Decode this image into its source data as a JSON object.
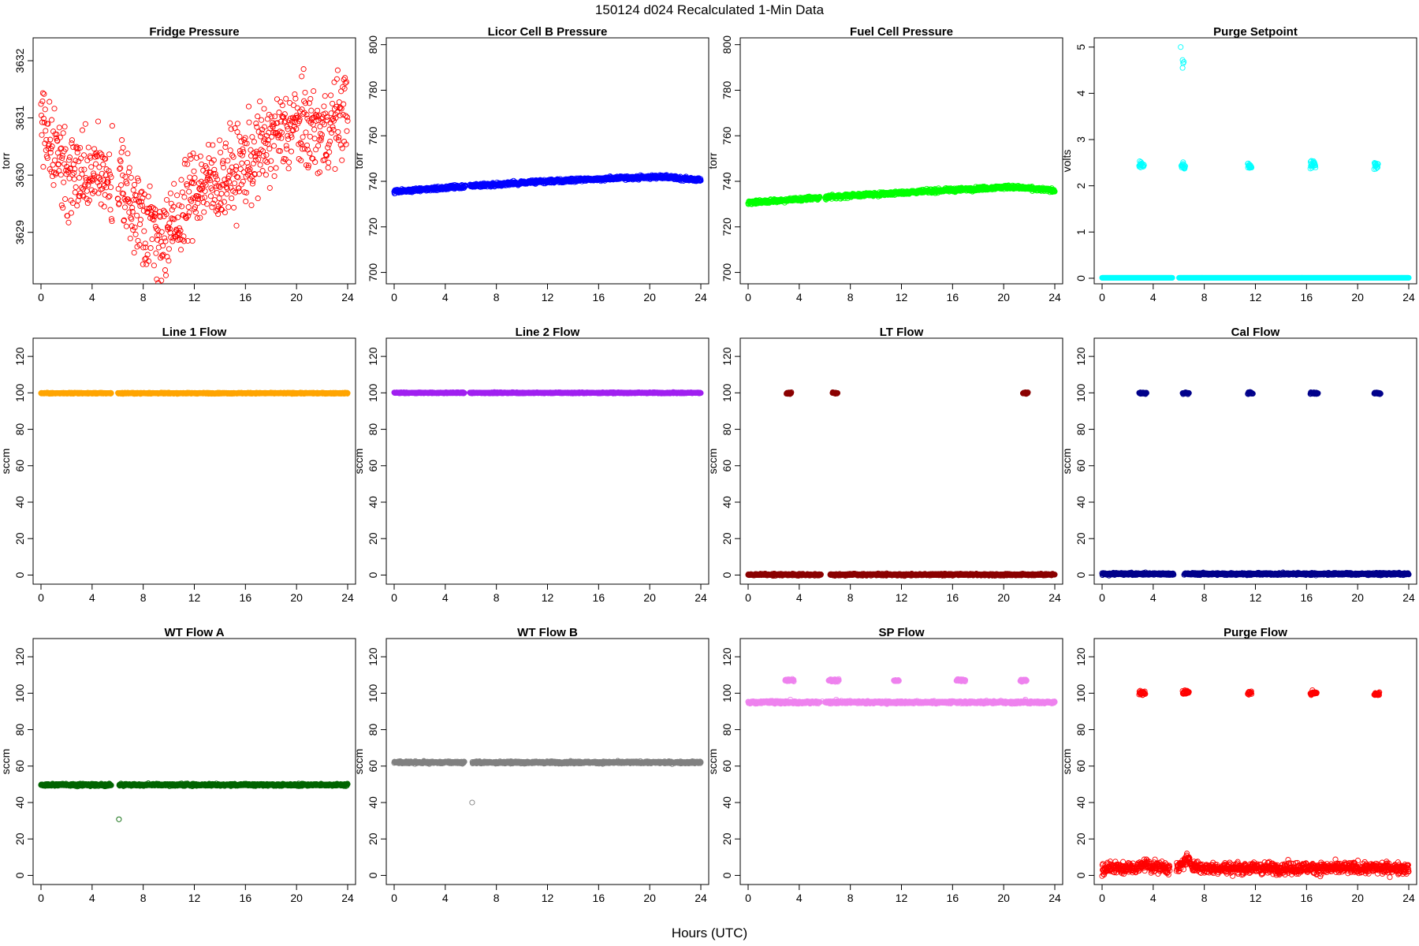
{
  "figure": {
    "title": "150124    d024    Recalculated 1-Min Data",
    "xlabel": "Hours (UTC)"
  },
  "chart_data": [
    {
      "type": "scatter",
      "title": "Fridge Pressure",
      "ylabel": "torr",
      "color": "#ff0000",
      "xlim": [
        0,
        24
      ],
      "ylim": [
        3628.1,
        3632.4
      ],
      "xticks": [
        0,
        4,
        8,
        12,
        16,
        20,
        24
      ],
      "yticks": [
        3629,
        3630,
        3631,
        3632
      ],
      "gap": [
        5.6,
        6.0
      ],
      "series": [
        {
          "kind": "noisy",
          "anchors": [
            [
              0,
              3631.0
            ],
            [
              1,
              3630.5
            ],
            [
              2,
              3630.0
            ],
            [
              4,
              3630.0
            ],
            [
              6,
              3629.9
            ],
            [
              7,
              3629.5
            ],
            [
              8,
              3629.3
            ],
            [
              9,
              3629.0
            ],
            [
              10,
              3628.9
            ],
            [
              11,
              3629.3
            ],
            [
              12,
              3629.8
            ],
            [
              14,
              3629.9
            ],
            [
              16,
              3630.2
            ],
            [
              18,
              3630.6
            ],
            [
              20,
              3630.9
            ],
            [
              22,
              3630.7
            ],
            [
              24,
              3631.2
            ]
          ],
          "noise": 0.38,
          "step": 0.03
        }
      ]
    },
    {
      "type": "scatter",
      "title": "Licor Cell B Pressure",
      "ylabel": "torr",
      "color": "#0000ff",
      "xlim": [
        0,
        24
      ],
      "ylim": [
        695,
        803
      ],
      "xticks": [
        0,
        4,
        8,
        12,
        16,
        20,
        24
      ],
      "yticks": [
        700,
        720,
        740,
        760,
        780,
        800
      ],
      "gap": [
        5.6,
        5.9
      ],
      "series": [
        {
          "kind": "line",
          "anchors": [
            [
              0,
              735.5
            ],
            [
              6,
              738
            ],
            [
              12,
              740
            ],
            [
              18,
              741.5
            ],
            [
              21,
              742
            ],
            [
              24,
              740.5
            ]
          ],
          "noise": 0.4,
          "step": 0.02
        }
      ]
    },
    {
      "type": "scatter",
      "title": "Fuel Cell Pressure",
      "ylabel": "torr",
      "color": "#00ff00",
      "xlim": [
        0,
        24
      ],
      "ylim": [
        695,
        803
      ],
      "xticks": [
        0,
        4,
        8,
        12,
        16,
        20,
        24
      ],
      "yticks": [
        700,
        720,
        740,
        760,
        780,
        800
      ],
      "gap": [
        5.6,
        6.0
      ],
      "series": [
        {
          "kind": "line",
          "anchors": [
            [
              0,
              730.5
            ],
            [
              6,
              733
            ],
            [
              12,
              735
            ],
            [
              18,
              736.8
            ],
            [
              20.5,
              737.5
            ],
            [
              24,
              736
            ]
          ],
          "noise": 0.4,
          "step": 0.02
        }
      ]
    },
    {
      "type": "scatter",
      "title": "Purge Setpoint",
      "ylabel": "volts",
      "color": "#00ffff",
      "xlim": [
        0,
        24
      ],
      "ylim": [
        -0.12,
        5.2
      ],
      "xticks": [
        0,
        4,
        8,
        12,
        16,
        20,
        24
      ],
      "yticks": [
        0,
        1,
        2,
        3,
        4,
        5
      ],
      "gap": [
        5.5,
        6.0
      ],
      "series": [
        {
          "kind": "line",
          "anchors": [
            [
              0,
              0.01
            ],
            [
              24,
              0.01
            ]
          ],
          "noise": 0,
          "step": 0.02
        },
        {
          "kind": "cluster",
          "clusters": [
            [
              2.9,
              3.3,
              2.45
            ],
            [
              6.2,
              6.5,
              2.43
            ],
            [
              11.4,
              11.7,
              2.43
            ],
            [
              16.3,
              16.7,
              2.46
            ],
            [
              21.3,
              21.6,
              2.44
            ]
          ],
          "noise": 0.04,
          "step": 0.02
        },
        {
          "kind": "points",
          "points": [
            [
              6.15,
              5.0
            ],
            [
              6.3,
              4.72
            ],
            [
              6.35,
              4.65
            ],
            [
              6.3,
              4.55
            ],
            [
              6.4,
              4.68
            ]
          ]
        }
      ]
    },
    {
      "type": "scatter",
      "title": "Line 1 Flow",
      "ylabel": "sccm",
      "color": "#ffa500",
      "xlim": [
        0,
        24
      ],
      "ylim": [
        -5,
        130
      ],
      "xticks": [
        0,
        4,
        8,
        12,
        16,
        20,
        24
      ],
      "yticks": [
        0,
        20,
        40,
        60,
        80,
        100,
        120
      ],
      "gap": [
        5.5,
        6.0
      ],
      "series": [
        {
          "kind": "line",
          "anchors": [
            [
              0,
              99.8
            ],
            [
              24,
              99.8
            ]
          ],
          "noise": 0.15,
          "step": 0.02
        }
      ]
    },
    {
      "type": "scatter",
      "title": "Line 2 Flow",
      "ylabel": "sccm",
      "color": "#a020f0",
      "xlim": [
        0,
        24
      ],
      "ylim": [
        -5,
        130
      ],
      "xticks": [
        0,
        4,
        8,
        12,
        16,
        20,
        24
      ],
      "yticks": [
        0,
        20,
        40,
        60,
        80,
        100,
        120
      ],
      "gap": [
        5.5,
        5.9
      ],
      "series": [
        {
          "kind": "line",
          "anchors": [
            [
              0,
              100
            ],
            [
              24,
              100
            ]
          ],
          "noise": 0.15,
          "step": 0.02
        }
      ]
    },
    {
      "type": "scatter",
      "title": "LT Flow",
      "ylabel": "sccm",
      "color": "#8b0000",
      "xlim": [
        0,
        24
      ],
      "ylim": [
        -5,
        130
      ],
      "xticks": [
        0,
        4,
        8,
        12,
        16,
        20,
        24
      ],
      "yticks": [
        0,
        20,
        40,
        60,
        80,
        100,
        120
      ],
      "gap": [
        5.7,
        6.4
      ],
      "series": [
        {
          "kind": "line",
          "anchors": [
            [
              0,
              0.2
            ],
            [
              24,
              0.2
            ]
          ],
          "noise": 0.25,
          "step": 0.02
        },
        {
          "kind": "cluster",
          "clusters": [
            [
              3.0,
              3.4,
              99.8
            ],
            [
              6.6,
              7.0,
              99.8
            ],
            [
              21.5,
              21.9,
              99.8
            ]
          ],
          "noise": 0.25,
          "step": 0.02
        }
      ]
    },
    {
      "type": "scatter",
      "title": "Cal Flow",
      "ylabel": "sccm",
      "color": "#00008b",
      "xlim": [
        0,
        24
      ],
      "ylim": [
        -5,
        130
      ],
      "xticks": [
        0,
        4,
        8,
        12,
        16,
        20,
        24
      ],
      "yticks": [
        0,
        20,
        40,
        60,
        80,
        100,
        120
      ],
      "gap": [
        5.6,
        6.4
      ],
      "series": [
        {
          "kind": "line",
          "anchors": [
            [
              0,
              0.6
            ],
            [
              24,
              0.6
            ]
          ],
          "noise": 0.3,
          "step": 0.02
        },
        {
          "kind": "cluster",
          "clusters": [
            [
              2.9,
              3.5,
              99.8
            ],
            [
              6.3,
              6.8,
              99.8
            ],
            [
              11.4,
              11.8,
              99.8
            ],
            [
              16.3,
              16.9,
              99.8
            ],
            [
              21.3,
              21.8,
              99.8
            ]
          ],
          "noise": 0.25,
          "step": 0.02
        }
      ]
    },
    {
      "type": "scatter",
      "title": "WT Flow A",
      "ylabel": "sccm",
      "color": "#006400",
      "xlim": [
        0,
        24
      ],
      "ylim": [
        -5,
        130
      ],
      "xticks": [
        0,
        4,
        8,
        12,
        16,
        20,
        24
      ],
      "yticks": [
        0,
        20,
        40,
        60,
        80,
        100,
        120
      ],
      "gap": [
        5.5,
        6.1
      ],
      "series": [
        {
          "kind": "line",
          "anchors": [
            [
              0,
              49.7
            ],
            [
              24,
              49.7
            ]
          ],
          "noise": 0.3,
          "step": 0.02
        },
        {
          "kind": "points",
          "points": [
            [
              6.1,
              30.8
            ]
          ]
        }
      ]
    },
    {
      "type": "scatter",
      "title": "WT Flow B",
      "ylabel": "sccm",
      "color": "#808080",
      "xlim": [
        0,
        24
      ],
      "ylim": [
        -5,
        130
      ],
      "xticks": [
        0,
        4,
        8,
        12,
        16,
        20,
        24
      ],
      "yticks": [
        0,
        20,
        40,
        60,
        80,
        100,
        120
      ],
      "gap": [
        5.5,
        6.1
      ],
      "series": [
        {
          "kind": "line",
          "anchors": [
            [
              0,
              62
            ],
            [
              24,
              62
            ]
          ],
          "noise": 0.3,
          "step": 0.02
        },
        {
          "kind": "points",
          "points": [
            [
              6.1,
              40
            ]
          ]
        }
      ]
    },
    {
      "type": "scatter",
      "title": "SP Flow",
      "ylabel": "sccm",
      "color": "#ee82ee",
      "xlim": [
        0,
        24
      ],
      "ylim": [
        -5,
        130
      ],
      "xticks": [
        0,
        4,
        8,
        12,
        16,
        20,
        24
      ],
      "yticks": [
        0,
        20,
        40,
        60,
        80,
        100,
        120
      ],
      "gap": [
        5.6,
        6.0
      ],
      "series": [
        {
          "kind": "line",
          "anchors": [
            [
              0,
              95
            ],
            [
              24,
              95
            ]
          ],
          "noise": 0.35,
          "step": 0.02
        },
        {
          "kind": "cluster",
          "clusters": [
            [
              2.9,
              3.6,
              107
            ],
            [
              6.3,
              7.1,
              107
            ],
            [
              11.4,
              11.8,
              107
            ],
            [
              16.3,
              17.0,
              107
            ],
            [
              21.3,
              21.8,
              107
            ]
          ],
          "noise": 0.3,
          "step": 0.02
        },
        {
          "kind": "points",
          "points": [
            [
              3.3,
              96.5
            ],
            [
              6.9,
              96.5
            ],
            [
              21.7,
              96.5
            ],
            [
              5.8,
              95.5
            ]
          ]
        }
      ]
    },
    {
      "type": "scatter",
      "title": "Purge Flow",
      "ylabel": "sccm",
      "color": "#ff0000",
      "xlim": [
        0,
        24
      ],
      "ylim": [
        -5,
        130
      ],
      "xticks": [
        0,
        4,
        8,
        12,
        16,
        20,
        24
      ],
      "yticks": [
        0,
        20,
        40,
        60,
        80,
        100,
        120
      ],
      "gap": [
        5.3,
        5.8
      ],
      "series": [
        {
          "kind": "noisy",
          "anchors": [
            [
              0,
              4
            ],
            [
              2.8,
              4
            ],
            [
              3.3,
              6.5
            ],
            [
              3.8,
              5
            ],
            [
              5.3,
              4
            ],
            [
              6.0,
              4
            ],
            [
              6.6,
              9
            ],
            [
              7.2,
              5
            ],
            [
              8,
              4
            ],
            [
              24,
              4
            ]
          ],
          "noise": 1.6,
          "step": 0.02
        },
        {
          "kind": "cluster",
          "clusters": [
            [
              2.9,
              3.4,
              100
            ],
            [
              6.3,
              6.8,
              100.5
            ],
            [
              11.4,
              11.7,
              100
            ],
            [
              16.3,
              16.8,
              100
            ],
            [
              21.3,
              21.7,
              99.5
            ]
          ],
          "noise": 0.6,
          "step": 0.02
        }
      ]
    }
  ]
}
